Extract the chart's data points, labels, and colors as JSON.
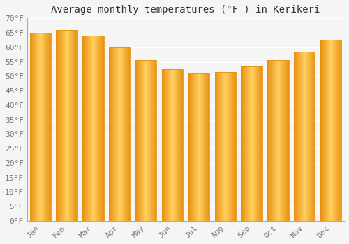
{
  "title": "Average monthly temperatures (°F ) in Kerikeri",
  "months": [
    "Jan",
    "Feb",
    "Mar",
    "Apr",
    "May",
    "Jun",
    "Jul",
    "Aug",
    "Sep",
    "Oct",
    "Nov",
    "Dec"
  ],
  "values": [
    65,
    66,
    64,
    60,
    55.5,
    52.5,
    51,
    51.5,
    53.5,
    55.5,
    58.5,
    62.5
  ],
  "bar_color_center": "#FFD060",
  "bar_color_edge": "#E89010",
  "ylim": [
    0,
    70
  ],
  "yticks": [
    0,
    5,
    10,
    15,
    20,
    25,
    30,
    35,
    40,
    45,
    50,
    55,
    60,
    65,
    70
  ],
  "ytick_labels": [
    "0°F",
    "5°F",
    "10°F",
    "15°F",
    "20°F",
    "25°F",
    "30°F",
    "35°F",
    "40°F",
    "45°F",
    "50°F",
    "55°F",
    "60°F",
    "65°F",
    "70°F"
  ],
  "background_color": "#f5f5f5",
  "grid_color": "#ffffff",
  "title_fontsize": 10,
  "tick_fontsize": 8,
  "font_family": "monospace",
  "bar_width": 0.8,
  "left_spine_color": "#aaaaaa"
}
